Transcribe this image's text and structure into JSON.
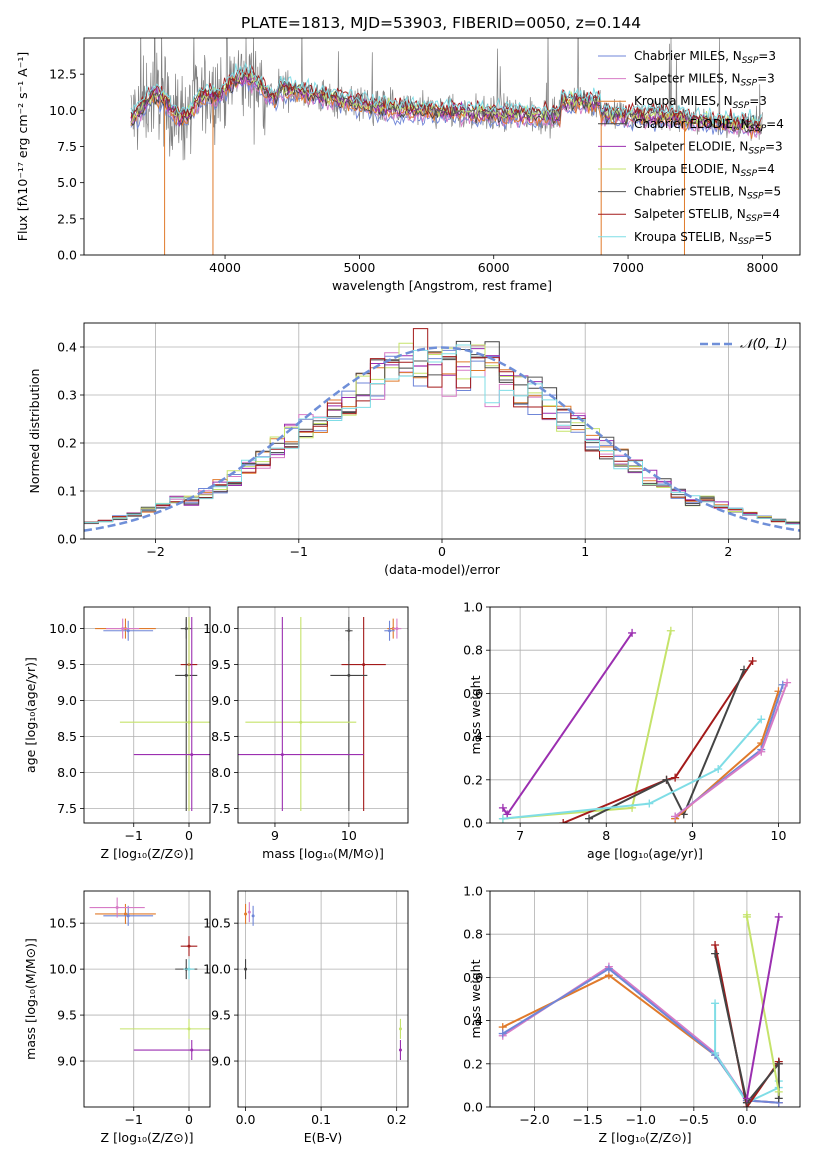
{
  "figure_title": "PLATE=1813, MJD=53903, FIBERID=0050, z=0.144",
  "chart_data": [
    {
      "id": "spectrum",
      "type": "line",
      "xlabel": "wavelength [Angstrom, rest frame]",
      "ylabel": "Flux [fλ10⁻¹⁷ erg cm⁻² s⁻¹ A⁻¹]",
      "xlim": [
        2950,
        8280
      ],
      "ylim": [
        0,
        15
      ],
      "xticks": [
        4000,
        5000,
        6000,
        7000,
        8000
      ],
      "yticks": [
        0.0,
        2.5,
        5.0,
        7.5,
        10.0,
        12.5
      ],
      "legend_position": "top-right",
      "series": [
        {
          "name": "Chabrier MILES, N_SSP=3",
          "color": "#6f86d8"
        },
        {
          "name": "Salpeter MILES, N_SSP=3",
          "color": "#d77bc6"
        },
        {
          "name": "Kroupa MILES, N_SSP=3",
          "color": "#e07a2b"
        },
        {
          "name": "Chabrier ELODIE, N_SSP=4",
          "color": "#444444"
        },
        {
          "name": "Salpeter ELODIE, N_SSP=3",
          "color": "#9b2fb0"
        },
        {
          "name": "Kroupa ELODIE, N_SSP=4",
          "color": "#c5e36a"
        },
        {
          "name": "Chabrier STELIB, N_SSP=5",
          "color": "#555555"
        },
        {
          "name": "Salpeter STELIB, N_SSP=4",
          "color": "#a31a1a"
        },
        {
          "name": "Kroupa STELIB, N_SSP=5",
          "color": "#7fdde6"
        }
      ],
      "data_color": "#808080",
      "grid": false
    },
    {
      "id": "residuals",
      "type": "line",
      "xlabel": "(data-model)/error",
      "ylabel": "Normed distribution",
      "xlim": [
        -2.5,
        2.5
      ],
      "ylim": [
        0,
        0.45
      ],
      "xticks": [
        -2,
        -1,
        0,
        1,
        2
      ],
      "yticks": [
        0.0,
        0.1,
        0.2,
        0.3,
        0.4
      ],
      "legend_position": "top-right",
      "gaussian_label": "𝒩(0, 1)",
      "gaussian_color": "#6f8fd8",
      "grid": true
    },
    {
      "id": "age-vs-z",
      "type": "scatter",
      "xlabel": "Z [log₁₀(Z/Z⊙)]",
      "ylabel": "age  [log₁₀(age/yr)]",
      "xlim": [
        -1.9,
        0.38
      ],
      "ylim": [
        7.3,
        10.3
      ],
      "xticks": [
        -1,
        0
      ],
      "yticks": [
        7.5,
        8.0,
        8.5,
        9.0,
        9.5,
        10.0
      ],
      "grid": true,
      "points": [
        {
          "x": -1.15,
          "y": 10.0,
          "xerr": 0.55,
          "color": "#e07a2b"
        },
        {
          "x": -1.1,
          "y": 9.97,
          "xerr": 0.45,
          "color": "#6f86d8"
        },
        {
          "x": -1.2,
          "y": 10.0,
          "xerr": 0.3,
          "color": "#d77bc6"
        },
        {
          "x": 0.0,
          "y": 9.5,
          "xerr": 0.15,
          "color": "#a31a1a"
        },
        {
          "x": -0.05,
          "y": 9.35,
          "xerr": 0.2,
          "color": "#444444"
        },
        {
          "x": -0.05,
          "y": 10.0,
          "xerr": 0.1,
          "color": "#555555"
        },
        {
          "x": 0.0,
          "y": 8.7,
          "xerr": 1.25,
          "color": "#c5e36a"
        },
        {
          "x": 0.05,
          "y": 8.25,
          "xerr": 1.05,
          "color": "#9b2fb0"
        }
      ]
    },
    {
      "id": "age-vs-mass",
      "type": "scatter",
      "xlabel": "mass [log₁₀(M/M⊙)]",
      "ylabel": "",
      "xlim": [
        8.5,
        10.8
      ],
      "ylim": [
        7.3,
        10.3
      ],
      "xticks": [
        9,
        10
      ],
      "yticks": [
        7.5,
        8.0,
        8.5,
        9.0,
        9.5,
        10.0
      ],
      "grid": true,
      "points": [
        {
          "x": 10.6,
          "y": 10.0,
          "xerr": 0.08,
          "color": "#e07a2b"
        },
        {
          "x": 10.65,
          "y": 10.0,
          "xerr": 0.06,
          "color": "#d77bc6"
        },
        {
          "x": 10.55,
          "y": 9.97,
          "xerr": 0.07,
          "color": "#6f86d8"
        },
        {
          "x": 10.2,
          "y": 9.5,
          "xerr": 0.3,
          "color": "#a31a1a"
        },
        {
          "x": 10.0,
          "y": 9.35,
          "xerr": 0.25,
          "color": "#444444"
        },
        {
          "x": 10.0,
          "y": 9.97,
          "xerr": 0.05,
          "color": "#555555"
        },
        {
          "x": 9.35,
          "y": 8.7,
          "xerr": 0.75,
          "color": "#c5e36a"
        },
        {
          "x": 9.1,
          "y": 8.25,
          "xerr": 1.1,
          "color": "#9b2fb0"
        }
      ]
    },
    {
      "id": "weight-vs-age",
      "type": "line",
      "xlabel": "age  [log₁₀(age/yr)]",
      "ylabel": "mass weight",
      "xlim": [
        6.65,
        10.25
      ],
      "ylim": [
        0,
        1.0
      ],
      "xticks": [
        7,
        8,
        9,
        10
      ],
      "yticks": [
        0.0,
        0.2,
        0.4,
        0.6,
        0.8,
        1.0
      ],
      "grid": true,
      "series": [
        {
          "color": "#9b2fb0",
          "x": [
            6.8,
            6.85,
            8.3
          ],
          "y": [
            0.07,
            0.04,
            0.88
          ]
        },
        {
          "color": "#c5e36a",
          "x": [
            6.8,
            8.3,
            8.75
          ],
          "y": [
            0.02,
            0.07,
            0.89
          ]
        },
        {
          "color": "#a31a1a",
          "x": [
            7.5,
            8.7,
            8.8,
            9.7
          ],
          "y": [
            0.0,
            0.2,
            0.21,
            0.75
          ]
        },
        {
          "color": "#444444",
          "x": [
            7.8,
            8.7,
            8.9,
            9.6
          ],
          "y": [
            0.02,
            0.2,
            0.04,
            0.71
          ]
        },
        {
          "color": "#7fdde6",
          "x": [
            6.8,
            8.5,
            9.3,
            9.8
          ],
          "y": [
            0.02,
            0.09,
            0.25,
            0.48
          ]
        },
        {
          "color": "#e07a2b",
          "x": [
            8.8,
            9.8,
            10.0
          ],
          "y": [
            0.02,
            0.37,
            0.61
          ]
        },
        {
          "color": "#6f86d8",
          "x": [
            8.8,
            9.8,
            10.05
          ],
          "y": [
            0.03,
            0.34,
            0.64
          ]
        },
        {
          "color": "#d77bc6",
          "x": [
            8.8,
            9.8,
            10.1
          ],
          "y": [
            0.03,
            0.33,
            0.65
          ]
        }
      ]
    },
    {
      "id": "mass-vs-z",
      "type": "scatter",
      "xlabel": "Z [log₁₀(Z/Z⊙)]",
      "ylabel": "mass [log₁₀(M/M⊙)]",
      "xlim": [
        -1.9,
        0.38
      ],
      "ylim": [
        8.5,
        10.85
      ],
      "xticks": [
        -1,
        0
      ],
      "yticks": [
        9.0,
        9.5,
        10.0,
        10.5
      ],
      "grid": true,
      "points": [
        {
          "x": -1.15,
          "y": 10.6,
          "xerr": 0.55,
          "color": "#e07a2b"
        },
        {
          "x": -1.1,
          "y": 10.58,
          "xerr": 0.45,
          "color": "#6f86d8"
        },
        {
          "x": -1.3,
          "y": 10.67,
          "xerr": 0.5,
          "color": "#d77bc6"
        },
        {
          "x": 0.0,
          "y": 10.25,
          "xerr": 0.15,
          "color": "#a31a1a"
        },
        {
          "x": -0.05,
          "y": 10.0,
          "xerr": 0.2,
          "color": "#444444"
        },
        {
          "x": 0.0,
          "y": 10.0,
          "xerr": 0.1,
          "color": "#7fdde6"
        },
        {
          "x": 0.0,
          "y": 9.35,
          "xerr": 1.25,
          "color": "#c5e36a"
        },
        {
          "x": 0.05,
          "y": 9.12,
          "xerr": 1.05,
          "color": "#9b2fb0"
        }
      ]
    },
    {
      "id": "mass-vs-ebv",
      "type": "scatter",
      "xlabel": "E(B-V)",
      "ylabel": "",
      "xlim": [
        -0.01,
        0.215
      ],
      "ylim": [
        8.5,
        10.85
      ],
      "xticks": [
        0.0,
        0.1,
        0.2
      ],
      "yticks": [
        9.0,
        9.5,
        10.0,
        10.5
      ],
      "grid": true,
      "points": [
        {
          "x": 0.0,
          "y": 10.6,
          "color": "#e07a2b"
        },
        {
          "x": 0.005,
          "y": 10.62,
          "color": "#d77bc6"
        },
        {
          "x": 0.01,
          "y": 10.58,
          "color": "#6f86d8"
        },
        {
          "x": 0.0,
          "y": 10.0,
          "color": "#444444"
        },
        {
          "x": 0.205,
          "y": 9.35,
          "color": "#c5e36a"
        },
        {
          "x": 0.205,
          "y": 9.12,
          "color": "#9b2fb0"
        }
      ]
    },
    {
      "id": "weight-vs-z",
      "type": "line",
      "xlabel": "Z [log₁₀(Z/Z⊙)]",
      "ylabel": "mass weight",
      "xlim": [
        -2.42,
        0.5
      ],
      "ylim": [
        0,
        1.0
      ],
      "xticks": [
        -2.0,
        -1.5,
        -1.0,
        -0.5,
        0.0
      ],
      "yticks": [
        0.0,
        0.2,
        0.4,
        0.6,
        0.8,
        1.0
      ],
      "grid": true,
      "series": [
        {
          "color": "#e07a2b",
          "x": [
            -2.3,
            -1.3,
            -0.3,
            0.0,
            0.3
          ],
          "y": [
            0.37,
            0.61,
            0.24,
            0.03,
            0.02
          ]
        },
        {
          "color": "#d77bc6",
          "x": [
            -2.3,
            -1.3,
            -0.3,
            0.0,
            0.3
          ],
          "y": [
            0.33,
            0.65,
            0.25,
            0.03,
            0.02
          ]
        },
        {
          "color": "#6f86d8",
          "x": [
            -2.3,
            -1.3,
            -0.3,
            0.0,
            0.3
          ],
          "y": [
            0.34,
            0.64,
            0.24,
            0.03,
            0.02
          ]
        },
        {
          "color": "#7fdde6",
          "x": [
            -0.3,
            -0.3,
            0.0,
            0.3,
            0.3
          ],
          "y": [
            0.48,
            0.25,
            0.02,
            0.09,
            0.12
          ]
        },
        {
          "color": "#a31a1a",
          "x": [
            -0.3,
            0.0,
            0.3,
            0.3
          ],
          "y": [
            0.75,
            0.0,
            0.21,
            0.2
          ]
        },
        {
          "color": "#444444",
          "x": [
            -0.3,
            0.0,
            0.3,
            0.3
          ],
          "y": [
            0.71,
            0.02,
            0.2,
            0.04
          ]
        },
        {
          "color": "#c5e36a",
          "x": [
            0.0,
            0.0,
            0.3
          ],
          "y": [
            0.89,
            0.88,
            0.07
          ]
        },
        {
          "color": "#9b2fb0",
          "x": [
            0.0,
            0.3
          ],
          "y": [
            0.04,
            0.88
          ]
        }
      ]
    }
  ]
}
